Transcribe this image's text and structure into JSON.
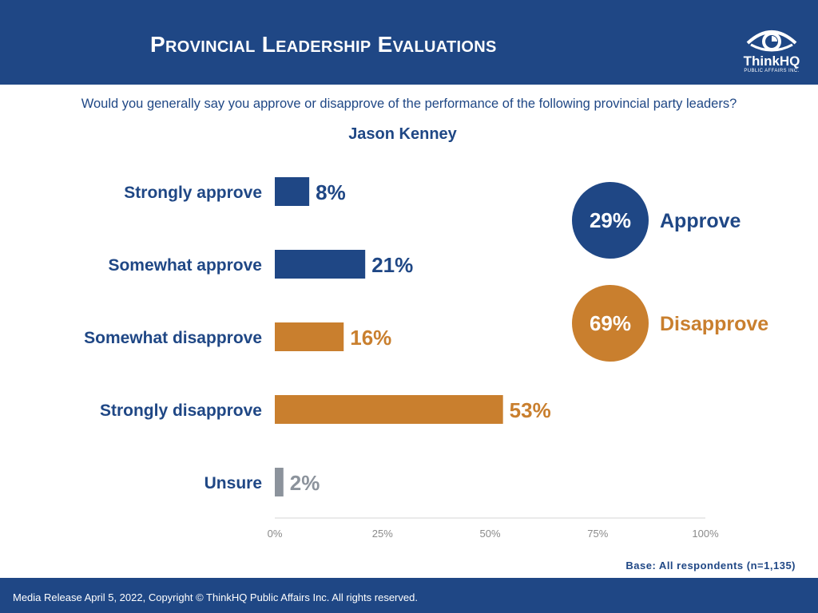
{
  "header": {
    "title": "Provincial Leadership Evaluations",
    "logo_name": "ThinkHQ",
    "logo_sub": "PUBLIC AFFAIRS INC."
  },
  "question": "Would you generally say you approve or disapprove of the performance of the following provincial party leaders?",
  "subject": "Jason Kenney",
  "colors": {
    "brand_blue": "#1f4785",
    "approve": "#1f4785",
    "disapprove": "#c97f2e",
    "unsure": "#8c939c"
  },
  "chart_data": {
    "type": "bar",
    "orientation": "horizontal",
    "categories": [
      "Strongly approve",
      "Somewhat approve",
      "Somewhat disapprove",
      "Strongly disapprove",
      "Unsure"
    ],
    "values": [
      8,
      21,
      16,
      53,
      2
    ],
    "value_labels": [
      "8%",
      "21%",
      "16%",
      "53%",
      "2%"
    ],
    "groups": [
      "approve",
      "approve",
      "disapprove",
      "disapprove",
      "unsure"
    ],
    "xlim": [
      0,
      100
    ],
    "xticks": [
      0,
      25,
      50,
      75,
      100
    ],
    "xtick_labels": [
      "0%",
      "25%",
      "50%",
      "75%",
      "100%"
    ],
    "grid": false,
    "summary": [
      {
        "label": "Approve",
        "value": "29%",
        "group": "approve"
      },
      {
        "label": "Disapprove",
        "value": "69%",
        "group": "disapprove"
      }
    ]
  },
  "base_note": "Base: All respondents (n=1,135)",
  "footer": "Media Release April 5, 2022, Copyright © ThinkHQ Public Affairs Inc. All rights reserved."
}
